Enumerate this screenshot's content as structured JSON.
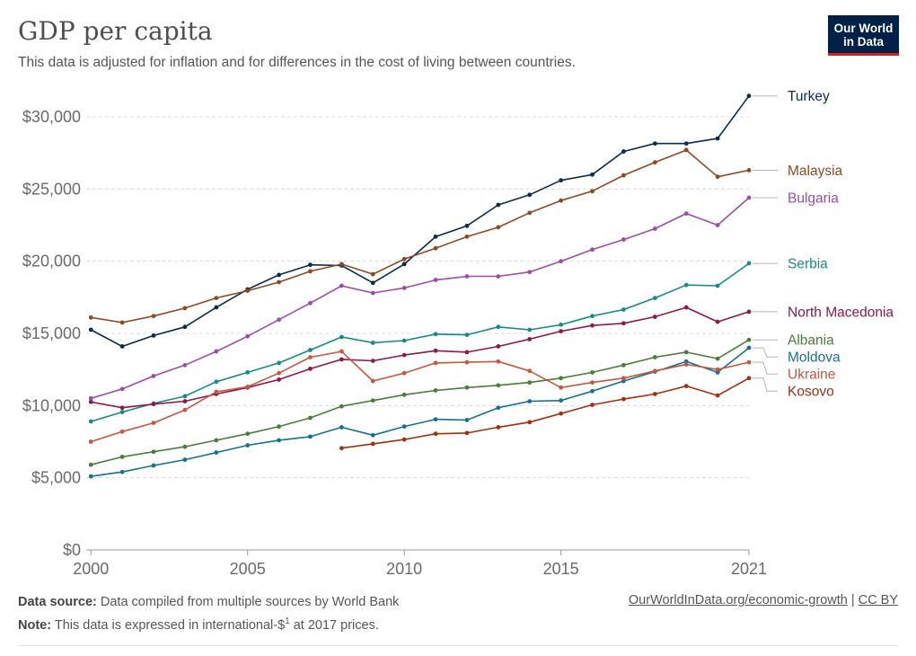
{
  "header": {
    "title": "GDP per capita",
    "subtitle": "This data is adjusted for inflation and for differences in the cost of living between countries.",
    "logo_line1": "Our World",
    "logo_line2": "in Data"
  },
  "footer": {
    "source_label": "Data source:",
    "source_text": "Data compiled from multiple sources by World Bank",
    "note_label": "Note:",
    "note_text": "This data is expressed in international-$",
    "note_sup": "1",
    "note_tail": " at 2017 prices.",
    "link_text": "OurWorldInData.org/economic-growth",
    "separator": "|",
    "license": "CC BY"
  },
  "chart_data": {
    "type": "line",
    "title": "GDP per capita",
    "xlabel": "",
    "ylabel": "",
    "xlim": [
      1999.85,
      2021
    ],
    "ylim": [
      0,
      30000
    ],
    "x_ticks": [
      2000,
      2005,
      2010,
      2015,
      2021
    ],
    "y_ticks": [
      0,
      5000,
      10000,
      15000,
      20000,
      25000,
      30000
    ],
    "y_tick_labels": [
      "$0",
      "$5,000",
      "$10,000",
      "$15,000",
      "$20,000",
      "$25,000",
      "$30,000"
    ],
    "grid": "horizontal dashed",
    "legend": "right, labels at line ends",
    "series": [
      {
        "name": "Turkey",
        "color": "#0c2c48",
        "start": 2000,
        "values": [
          15250,
          14100,
          14850,
          15450,
          16800,
          18050,
          19050,
          19750,
          19700,
          18500,
          19800,
          21700,
          22450,
          23900,
          24600,
          25600,
          26000,
          27600,
          28150,
          28150,
          28500,
          31450
        ]
      },
      {
        "name": "Malaysia",
        "color": "#8c4a25",
        "start": 2000,
        "values": [
          16100,
          15750,
          16200,
          16750,
          17450,
          17950,
          18550,
          19300,
          19800,
          19100,
          20150,
          20900,
          21700,
          22350,
          23350,
          24200,
          24850,
          25950,
          26850,
          27700,
          25850,
          26300
        ]
      },
      {
        "name": "Bulgaria",
        "color": "#9a4fa2",
        "start": 2000,
        "values": [
          10500,
          11150,
          12050,
          12800,
          13750,
          14800,
          15950,
          17100,
          18300,
          17800,
          18150,
          18700,
          18950,
          18950,
          19250,
          20000,
          20800,
          21500,
          22250,
          23300,
          22500,
          24400
        ]
      },
      {
        "name": "Serbia",
        "color": "#198986",
        "start": 2000,
        "values": [
          8900,
          9550,
          10150,
          10650,
          11650,
          12300,
          12950,
          13850,
          14750,
          14350,
          14500,
          14950,
          14900,
          15450,
          15250,
          15600,
          16200,
          16650,
          17450,
          18350,
          18300,
          19850
        ]
      },
      {
        "name": "North Macedonia",
        "color": "#8a1a4b",
        "start": 2000,
        "values": [
          10250,
          9850,
          10100,
          10300,
          10800,
          11250,
          11800,
          12550,
          13200,
          13100,
          13500,
          13800,
          13700,
          14100,
          14600,
          15150,
          15550,
          15700,
          16150,
          16800,
          15800,
          16500
        ]
      },
      {
        "name": "Albania",
        "color": "#4a7c3c",
        "start": 2000,
        "values": [
          5900,
          6450,
          6800,
          7150,
          7600,
          8050,
          8550,
          9150,
          9950,
          10350,
          10750,
          11050,
          11250,
          11400,
          11600,
          11900,
          12300,
          12800,
          13350,
          13700,
          13250,
          14550
        ]
      },
      {
        "name": "Moldova",
        "color": "#18708e",
        "start": 2000,
        "values": [
          5100,
          5400,
          5850,
          6250,
          6750,
          7250,
          7600,
          7850,
          8500,
          7950,
          8550,
          9050,
          9000,
          9850,
          10300,
          10350,
          11000,
          11700,
          12350,
          13050,
          12300,
          14000
        ]
      },
      {
        "name": "Ukraine",
        "color": "#c15a41",
        "start": 2000,
        "values": [
          7500,
          8200,
          8800,
          9700,
          10950,
          11300,
          12250,
          13350,
          13750,
          11700,
          12250,
          12950,
          13000,
          13050,
          12400,
          11250,
          11600,
          11900,
          12400,
          12850,
          12500,
          13000
        ]
      },
      {
        "name": "Kosovo",
        "color": "#9c3211",
        "start": 2008,
        "values": [
          7050,
          7350,
          7650,
          8050,
          8100,
          8500,
          8850,
          9450,
          10050,
          10450,
          10800,
          11350,
          10700,
          11900
        ]
      }
    ]
  }
}
